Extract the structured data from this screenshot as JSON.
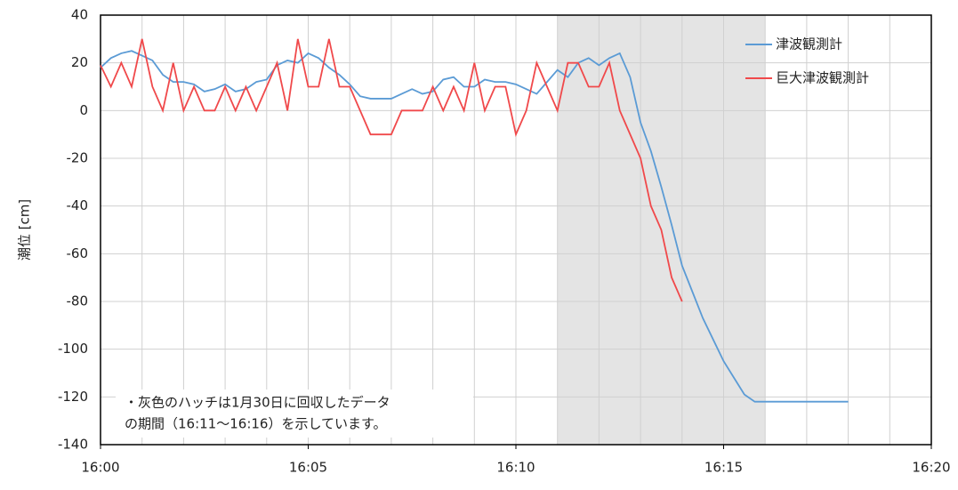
{
  "chart_data": {
    "type": "line",
    "ylabel": "潮位 [cm]",
    "xlim": [
      0,
      20
    ],
    "xticks": [
      {
        "value": 0,
        "label": "16:00"
      },
      {
        "value": 5,
        "label": "16:05"
      },
      {
        "value": 10,
        "label": "16:10"
      },
      {
        "value": 15,
        "label": "16:15"
      },
      {
        "value": 20,
        "label": "16:20"
      }
    ],
    "ylim": [
      -140,
      40
    ],
    "yticks": [
      -140,
      -120,
      -100,
      -80,
      -60,
      -40,
      -20,
      0,
      20,
      40
    ],
    "grid": {
      "x_step": 1
    },
    "shade": [
      11,
      16
    ],
    "legend": "upper right",
    "annotation": [
      "・灰色のハッチは1月30日に回収したデータ",
      "の期間（16:11～16:16）を示しています。"
    ],
    "series": [
      {
        "name": "津波観測計",
        "color": "#5b9bd5",
        "x": [
          0,
          0.25,
          0.5,
          0.75,
          1,
          1.25,
          1.5,
          1.75,
          2,
          2.25,
          2.5,
          2.75,
          3,
          3.25,
          3.5,
          3.75,
          4,
          4.25,
          4.5,
          4.75,
          5,
          5.25,
          5.5,
          5.75,
          6,
          6.25,
          6.5,
          6.75,
          7,
          7.25,
          7.5,
          7.75,
          8,
          8.25,
          8.5,
          8.75,
          9,
          9.25,
          9.5,
          9.75,
          10,
          10.25,
          10.5,
          10.75,
          11,
          11.25,
          11.5,
          11.75,
          12,
          12.25,
          12.5,
          12.75,
          13,
          13.25,
          13.5,
          13.75,
          14,
          14.25,
          14.5,
          14.75,
          15,
          15.25,
          15.5,
          15.75,
          16,
          18
        ],
        "values": [
          18,
          22,
          24,
          25,
          23,
          21,
          15,
          12,
          12,
          11,
          8,
          9,
          11,
          8,
          9,
          12,
          13,
          19,
          21,
          20,
          24,
          22,
          18,
          15,
          11,
          6,
          5,
          5,
          5,
          7,
          9,
          7,
          8,
          13,
          14,
          10,
          10,
          13,
          12,
          12,
          11,
          9,
          7,
          12,
          17,
          14,
          20,
          22,
          19,
          22,
          24,
          14,
          -5,
          -17,
          -32,
          -48,
          -65,
          -76,
          -87,
          -96,
          -105,
          -112,
          -119,
          -122,
          -122,
          -122
        ]
      },
      {
        "name": "巨大津波観測計",
        "color": "#f0494b",
        "x": [
          0,
          0.25,
          0.5,
          0.75,
          1,
          1.25,
          1.5,
          1.75,
          2,
          2.25,
          2.5,
          2.75,
          3,
          3.25,
          3.5,
          3.75,
          4,
          4.25,
          4.5,
          4.75,
          5,
          5.25,
          5.5,
          5.75,
          6,
          6.25,
          6.5,
          6.75,
          7,
          7.25,
          7.5,
          7.75,
          8,
          8.25,
          8.5,
          8.75,
          9,
          9.25,
          9.5,
          9.75,
          10,
          10.25,
          10.5,
          10.75,
          11,
          11.25,
          11.5,
          11.75,
          12,
          12.25,
          12.5,
          12.75,
          13,
          13.25,
          13.5,
          13.75,
          14
        ],
        "values": [
          19,
          10,
          20,
          10,
          30,
          10,
          0,
          20,
          0,
          10,
          0,
          0,
          10,
          0,
          10,
          0,
          10,
          20,
          0,
          30,
          10,
          10,
          30,
          10,
          10,
          0,
          -10,
          -10,
          -10,
          0,
          0,
          0,
          10,
          0,
          10,
          0,
          20,
          0,
          10,
          10,
          -10,
          0,
          20,
          10,
          0,
          20,
          20,
          10,
          10,
          20,
          0,
          -10,
          -20,
          -40,
          -50,
          -70,
          -80
        ]
      }
    ]
  }
}
